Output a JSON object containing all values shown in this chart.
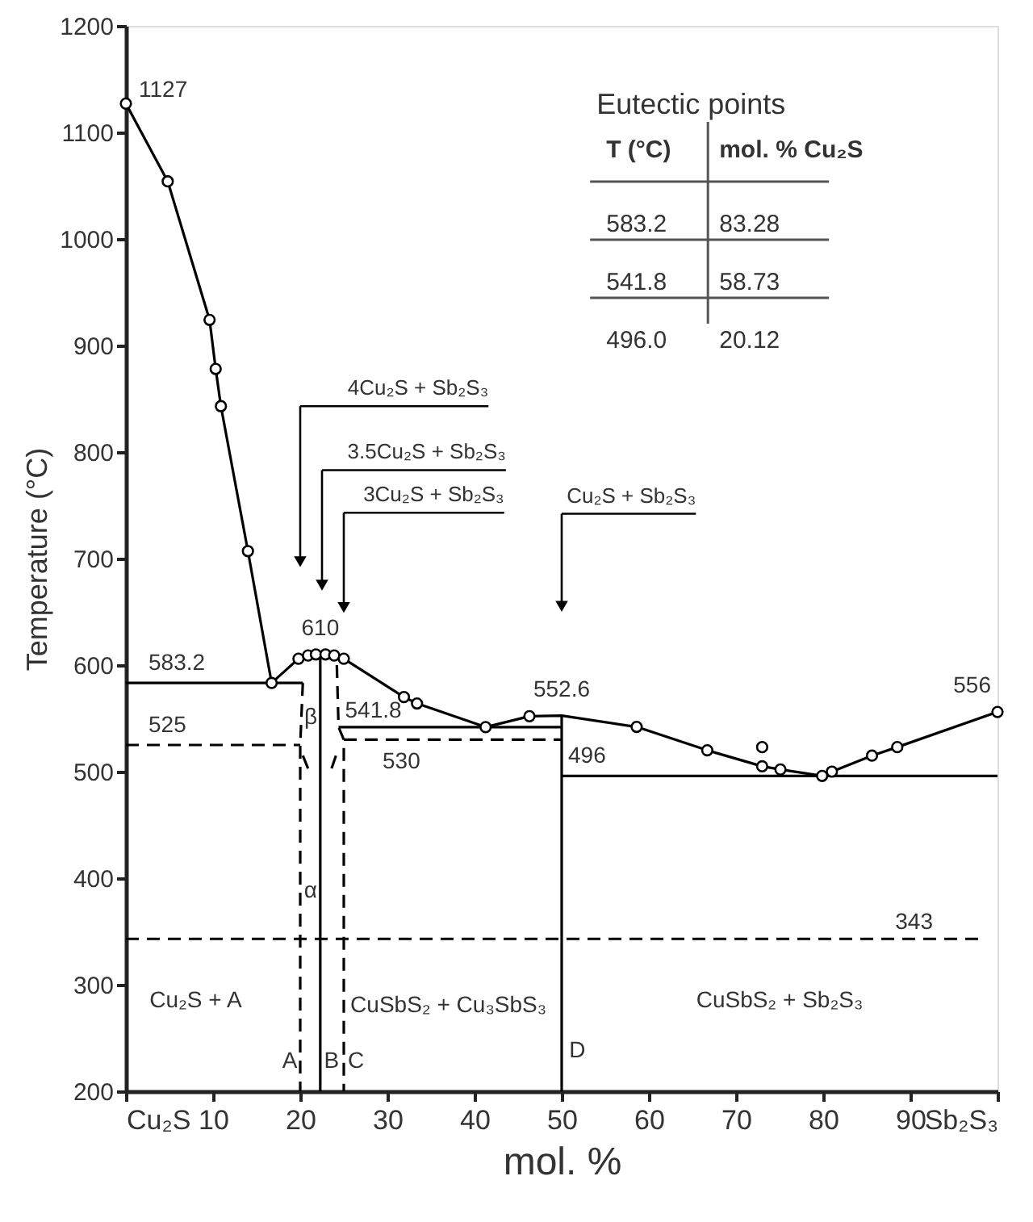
{
  "chart_data": {
    "type": "line",
    "xlabel": "mol. %",
    "ylabel": "Temperature (°C)",
    "xlim": [
      0,
      100
    ],
    "ylim": [
      200,
      1200
    ],
    "xticks": [
      {
        "value": 0,
        "label": "Cu₂S"
      },
      10,
      20,
      30,
      40,
      50,
      60,
      70,
      80,
      90,
      {
        "value": 100,
        "label": "Sb₂S₃"
      }
    ],
    "yticks": [
      200,
      300,
      400,
      500,
      600,
      700,
      800,
      900,
      1000,
      1100,
      1200
    ],
    "series": [
      {
        "color": "#000000",
        "line_style": "solid",
        "x": [
          0,
          4.8,
          9.6,
          10.3,
          10.9,
          14,
          16.72,
          19.8,
          22.3,
          25,
          31.9,
          33.4,
          41.27,
          46.3,
          50,
          58.6,
          66.7,
          73,
          75.1,
          79.88,
          81,
          85.6,
          88.5,
          100
        ],
        "values": [
          1127,
          1054,
          924,
          878,
          843,
          707,
          583.2,
          606,
          610,
          606,
          570,
          564,
          541.8,
          552,
          552.6,
          542,
          520,
          505,
          502,
          496,
          500,
          515,
          523,
          556
        ]
      },
      {
        "color": "#000000",
        "line_style": "solid",
        "x": [
          0,
          20.3
        ],
        "values": [
          583.2,
          583.2
        ]
      },
      {
        "color": "#000000",
        "line_style": "solid",
        "x": [
          24.4,
          50
        ],
        "values": [
          541.8,
          541.8
        ]
      },
      {
        "color": "#000000",
        "line_style": "solid",
        "x": [
          50,
          100
        ],
        "values": [
          496,
          496
        ]
      },
      {
        "color": "#000000",
        "line_style": "solid",
        "x": [
          50,
          50
        ],
        "values": [
          200,
          552.6
        ]
      },
      {
        "color": "#000000",
        "line_style": "solid",
        "x": [
          22.3,
          22.3
        ],
        "values": [
          200,
          610
        ]
      },
      {
        "color": "#000000",
        "line_style": "solid",
        "x": [
          20.3,
          20.9
        ],
        "values": [
          515,
          503
        ]
      },
      {
        "color": "#000000",
        "line_style": "solid",
        "x": [
          24.1,
          23.6
        ],
        "values": [
          515,
          503
        ]
      },
      {
        "color": "#000000",
        "line_style": "dashed",
        "x": [
          0,
          20
        ],
        "values": [
          525,
          525
        ]
      },
      {
        "color": "#000000",
        "line_style": "dashed",
        "x": [
          25,
          50
        ],
        "values": [
          530,
          530
        ]
      },
      {
        "color": "#000000",
        "line_style": "dashed",
        "x": [
          20.3,
          20,
          20
        ],
        "values": [
          583.2,
          525,
          200
        ]
      },
      {
        "color": "#000000",
        "line_style": "dashed",
        "x": [
          24.2,
          24.4,
          25,
          25
        ],
        "values": [
          600,
          541.8,
          530,
          200
        ]
      },
      {
        "type": "scatter",
        "color": "#000000",
        "marker": "circle",
        "x": [
          0,
          4.8,
          9.6,
          10.3,
          10.9,
          14,
          16.72,
          19.8,
          20.9,
          21.8,
          22.9,
          23.9,
          25,
          31.9,
          33.4,
          41.27,
          46.3,
          58.6,
          66.7,
          73,
          73,
          75.1,
          79.88,
          81,
          85.6,
          88.5,
          100
        ],
        "values": [
          1127,
          1054,
          924,
          878,
          843,
          707,
          583.2,
          606,
          609,
          610,
          610,
          609,
          606,
          570,
          564,
          541.8,
          552,
          542,
          520,
          523,
          505,
          502,
          496,
          500,
          515,
          523,
          556
        ]
      }
    ],
    "ref_lines": [
      {
        "axis": "y",
        "value": 343,
        "label": "343",
        "color": "#000000",
        "line_style": "dashed"
      }
    ],
    "annotations": [
      {
        "text": "1127",
        "x": 0,
        "y": 1127
      },
      {
        "text": "583.2",
        "x": 0,
        "y": 583.2
      },
      {
        "text": "610",
        "x": 22.3,
        "y": 610
      },
      {
        "text": "541.8",
        "x": 24.4,
        "y": 541.8
      },
      {
        "text": "525",
        "x": 0,
        "y": 525
      },
      {
        "text": "530",
        "x": 25,
        "y": 530
      },
      {
        "text": "552.6",
        "x": 50,
        "y": 552.6
      },
      {
        "text": "496",
        "x": 50,
        "y": 496
      },
      {
        "text": "556",
        "x": 100,
        "y": 556
      },
      "4Cu₂S + Sb₂S₃",
      "3.5Cu₂S + Sb₂S₃",
      "3Cu₂S + Sb₂S₃",
      "Cu₂S + Sb₂S₃",
      "Cu₂S + A",
      "CuSbS₂ + Cu₃SbS₃",
      "CuSbS₂ + Sb₂S₃",
      "A",
      "B",
      "C",
      "D",
      "α",
      "β",
      "Eutectic points",
      "T (°C)",
      "mol. % Cu₂S",
      "583.2",
      "83.28",
      "541.8",
      "58.73",
      "496.0",
      "20.12"
    ]
  }
}
